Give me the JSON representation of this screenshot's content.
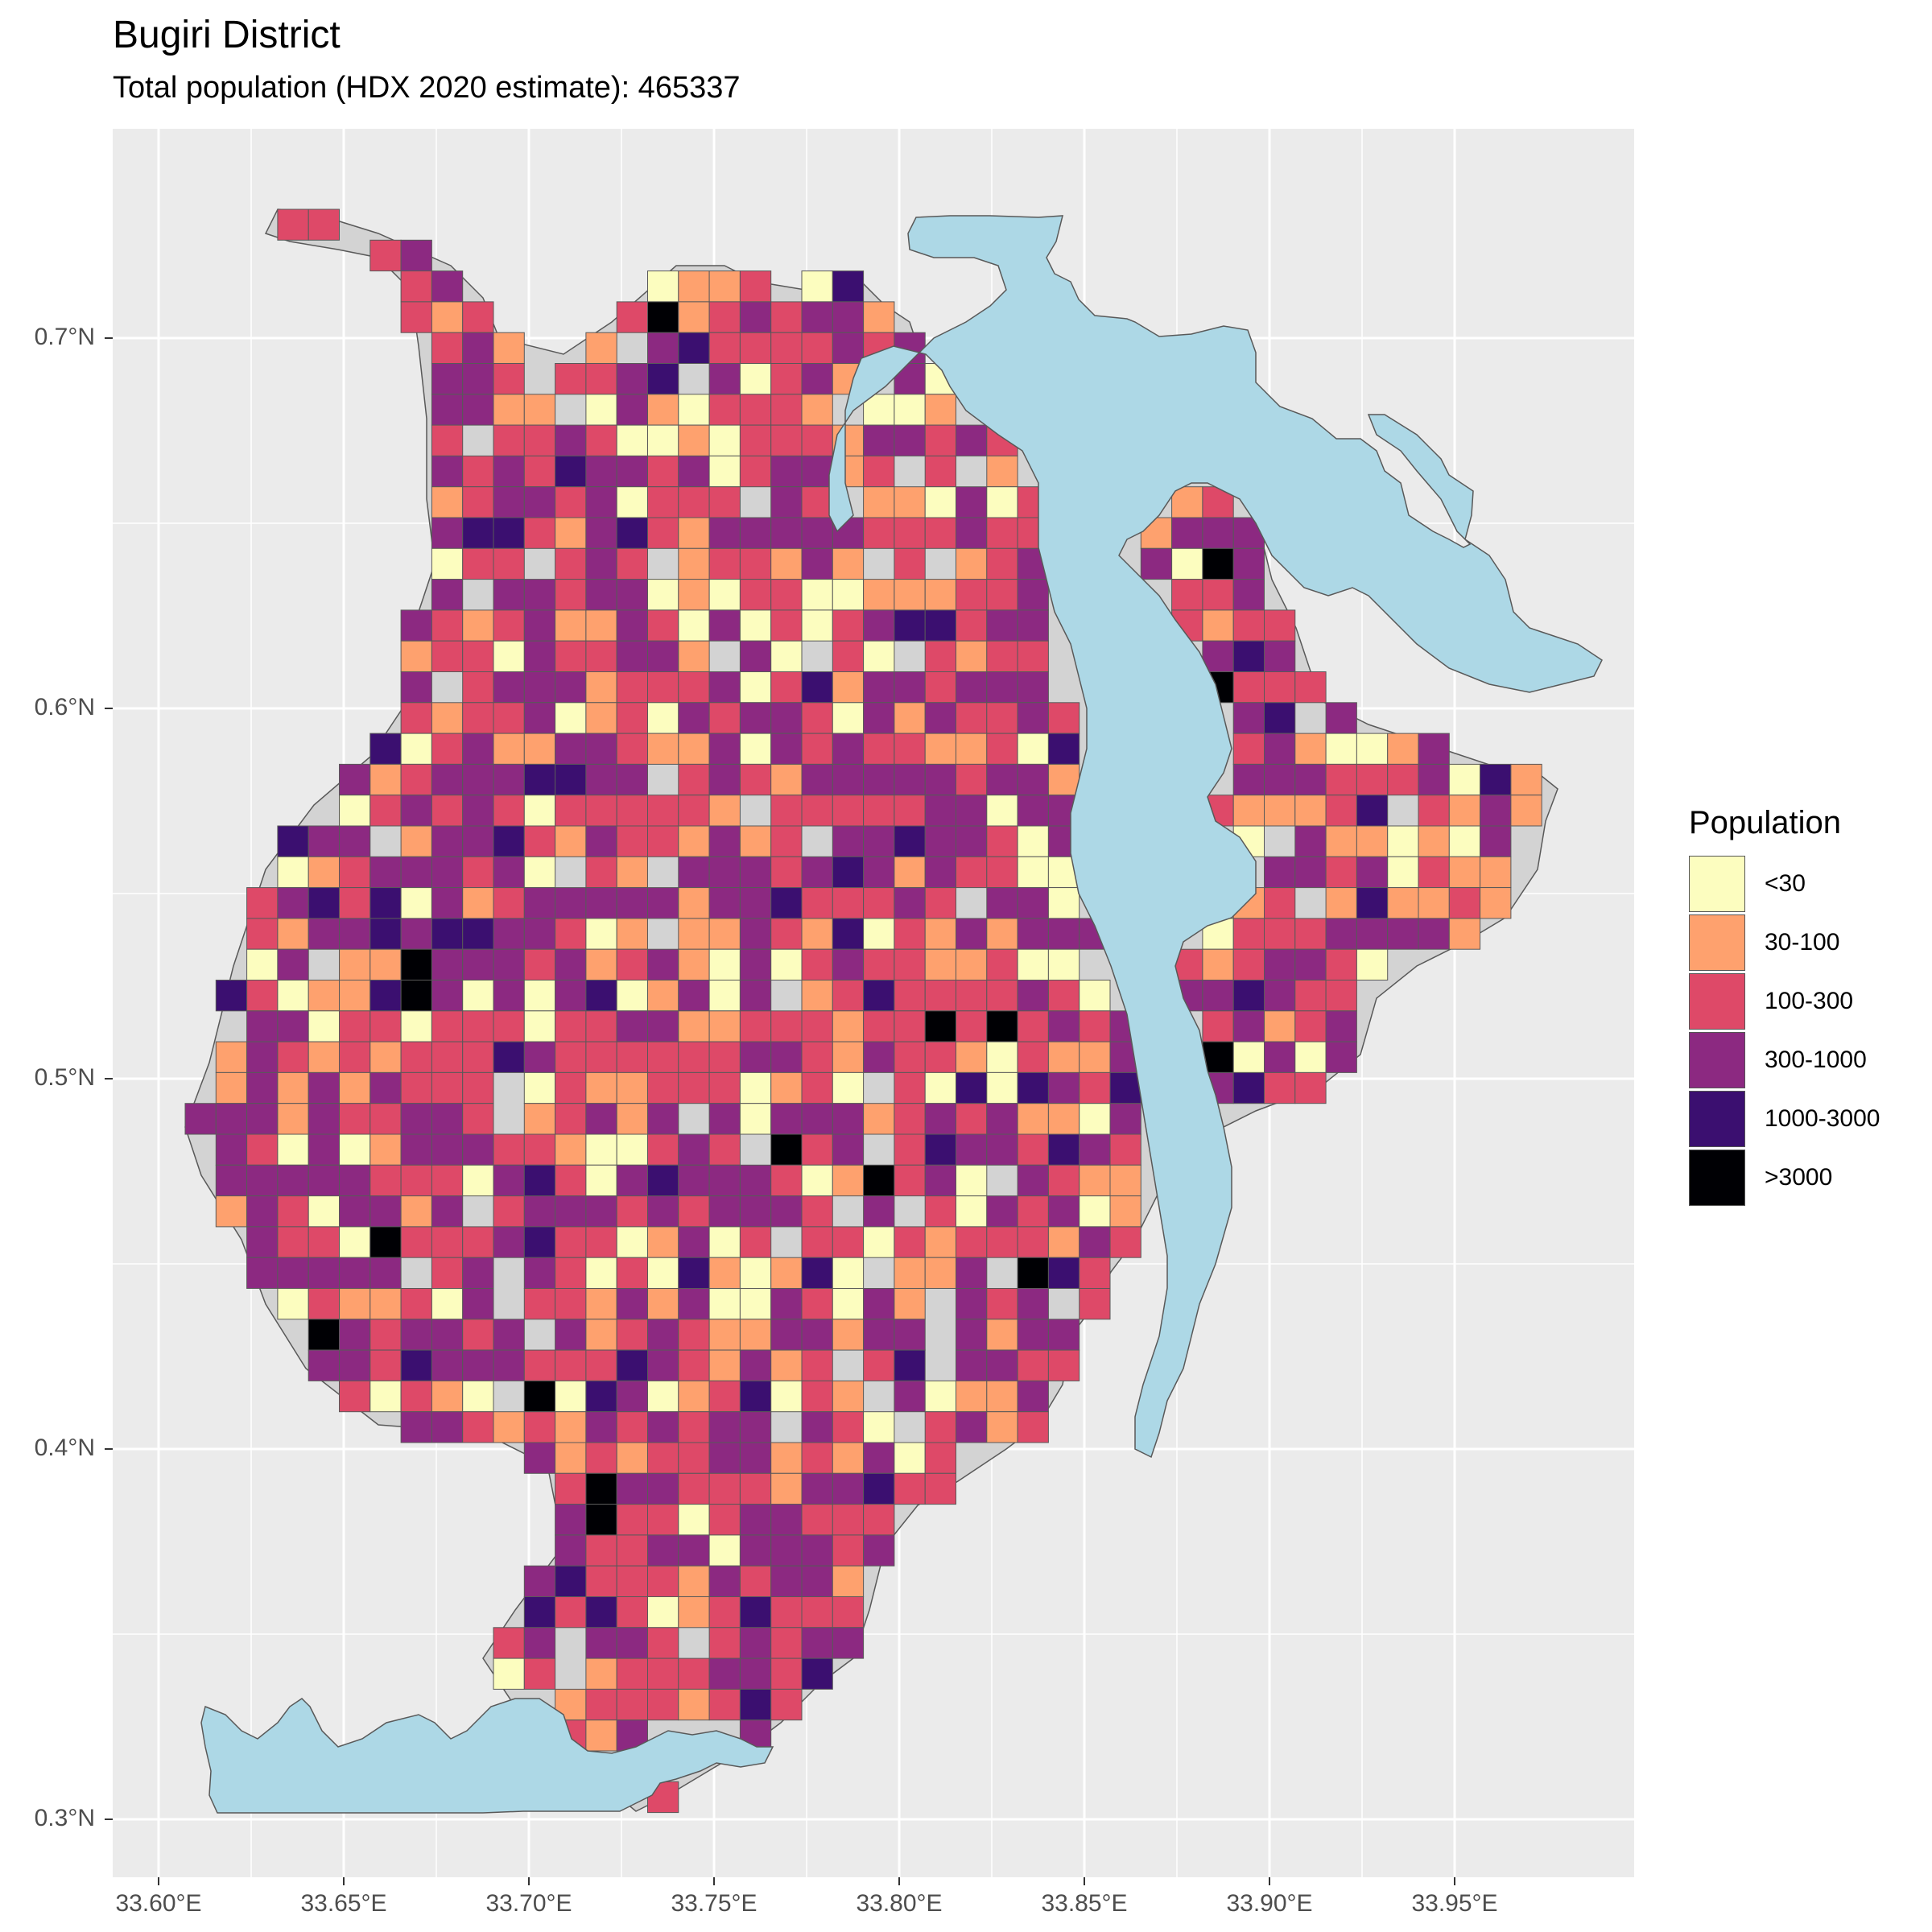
{
  "title": "Bugiri District",
  "subtitle": "Total population (HDX 2020 estimate): 465337",
  "colors": {
    "panel_bg": "#ebebeb",
    "grid": "#ffffff",
    "district_fill": "#d3d3d3",
    "water": "#add8e6",
    "border": "#595959"
  },
  "axes": {
    "x_ticks": [
      "33.60°E",
      "33.65°E",
      "33.70°E",
      "33.75°E",
      "33.80°E",
      "33.85°E",
      "33.90°E",
      "33.95°E"
    ],
    "y_ticks": [
      "0.7°N",
      "0.6°N",
      "0.5°N",
      "0.4°N",
      "0.3°N"
    ]
  },
  "legend": {
    "title": "Population",
    "items": [
      {
        "label": "<30",
        "color": "#fcfdbf"
      },
      {
        "label": "30-100",
        "color": "#fea16e"
      },
      {
        "label": "100-300",
        "color": "#de4968"
      },
      {
        "label": "300-1000",
        "color": "#8c2981"
      },
      {
        "label": "1000-3000",
        "color": "#3b0f70"
      },
      {
        "label": ">3000",
        "color": "#000004"
      }
    ]
  }
}
